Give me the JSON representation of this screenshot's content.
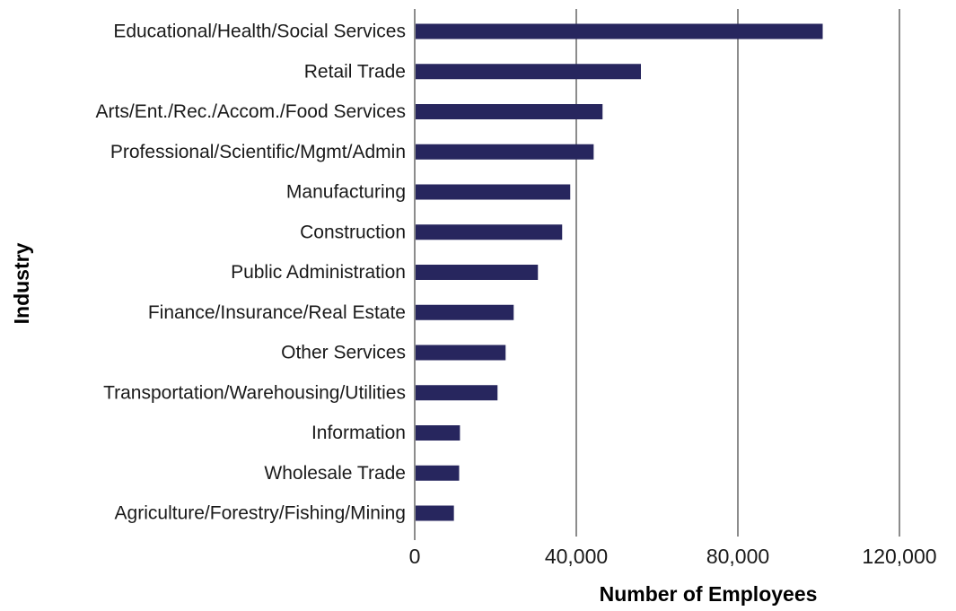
{
  "colors": {
    "bar": "#27265e",
    "grid": "#8c8c8c",
    "axis": "#8c8c8c"
  },
  "chart_data": {
    "type": "bar",
    "orientation": "horizontal",
    "title": "",
    "xlabel": "Number of Employees",
    "ylabel": "Industry",
    "xlim": [
      0,
      120000
    ],
    "xticks": [
      0,
      40000,
      80000,
      120000
    ],
    "xtick_labels": [
      "0",
      "40,000",
      "80,000",
      "120,000"
    ],
    "grid": "vertical",
    "legend": "none",
    "categories": [
      "Educational/Health/Social Services",
      "Retail Trade",
      "Arts/Ent./Rec./Accom./Food Services",
      "Professional/Scientific/Mgmt/Admin",
      "Manufacturing",
      "Construction",
      "Public Administration",
      "Finance/Insurance/Real Estate",
      "Other Services",
      "Transportation/Warehousing/Utilities",
      "Information",
      "Wholesale Trade",
      "Agriculture/Forestry/Fishing/Mining"
    ],
    "values": [
      101000,
      56000,
      46500,
      44300,
      38500,
      36500,
      30500,
      24500,
      22500,
      20500,
      11200,
      11000,
      9700
    ]
  }
}
